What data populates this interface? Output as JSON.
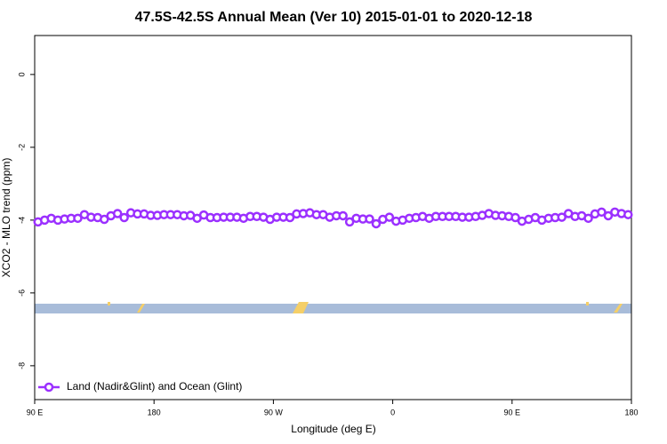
{
  "chart_data": {
    "type": "line",
    "title": "47.5S-42.5S Annual Mean (Ver 10)   2015-01-01 to 2020-12-18",
    "x_label": "Longitude (deg E)",
    "y_label": "XCO2 - MLO trend (ppm)",
    "xlim": [
      90,
      540
    ],
    "xticks": [
      {
        "value": 90,
        "label": "90 E"
      },
      180,
      {
        "value": 270,
        "label": "90 W"
      },
      {
        "value": 360,
        "label": "0"
      },
      {
        "value": 450,
        "label": "90 E"
      },
      {
        "value": 540,
        "label": "180"
      }
    ],
    "ylim": [
      -8.93,
      1.07
    ],
    "yticks": [
      0,
      -2,
      -4,
      -6,
      -8
    ],
    "legend": "bottomleft",
    "x": [
      92.5,
      97.5,
      102.5,
      107.5,
      112.5,
      117.5,
      122.5,
      127.5,
      132.5,
      137.5,
      142.5,
      147.5,
      152.5,
      157.5,
      162.5,
      167.5,
      172.5,
      177.5,
      182.5,
      187.5,
      192.5,
      197.5,
      202.5,
      207.5,
      212.5,
      217.5,
      222.5,
      227.5,
      232.5,
      237.5,
      242.5,
      247.5,
      252.5,
      257.5,
      262.5,
      267.5,
      272.5,
      277.5,
      282.5,
      287.5,
      292.5,
      297.5,
      302.5,
      307.5,
      312.5,
      317.5,
      322.5,
      327.5,
      332.5,
      337.5,
      342.5,
      347.5,
      352.5,
      357.5,
      362.5,
      367.5,
      372.5,
      377.5,
      382.5,
      387.5,
      392.5,
      397.5,
      402.5,
      407.5,
      412.5,
      417.5,
      422.5,
      427.5,
      432.5,
      437.5,
      442.5,
      447.5,
      452.5,
      457.5,
      462.5,
      467.5,
      472.5,
      477.5,
      482.5,
      487.5,
      492.5,
      497.5,
      502.5,
      507.5,
      512.5,
      517.5,
      522.5,
      527.5,
      532.5,
      537.5
    ],
    "series": [
      {
        "name": "Land (Nadir&Glint) and Ocean (Glint)",
        "color": "#9b30ff",
        "values": [
          -4.05,
          -4.0,
          -3.95,
          -4.0,
          -3.97,
          -3.95,
          -3.95,
          -3.85,
          -3.92,
          -3.93,
          -3.98,
          -3.88,
          -3.82,
          -3.93,
          -3.8,
          -3.83,
          -3.83,
          -3.87,
          -3.87,
          -3.85,
          -3.85,
          -3.85,
          -3.88,
          -3.87,
          -3.95,
          -3.86,
          -3.93,
          -3.93,
          -3.92,
          -3.92,
          -3.92,
          -3.95,
          -3.9,
          -3.9,
          -3.92,
          -3.98,
          -3.92,
          -3.92,
          -3.93,
          -3.83,
          -3.82,
          -3.8,
          -3.85,
          -3.85,
          -3.92,
          -3.88,
          -3.88,
          -4.05,
          -3.95,
          -3.97,
          -3.97,
          -4.1,
          -3.98,
          -3.92,
          -4.03,
          -4.0,
          -3.95,
          -3.93,
          -3.9,
          -3.95,
          -3.9,
          -3.9,
          -3.9,
          -3.9,
          -3.92,
          -3.92,
          -3.9,
          -3.87,
          -3.82,
          -3.87,
          -3.88,
          -3.9,
          -3.93,
          -4.03,
          -3.98,
          -3.93,
          -4.0,
          -3.95,
          -3.93,
          -3.92,
          -3.82,
          -3.9,
          -3.88,
          -3.95,
          -3.83,
          -3.78,
          -3.88,
          -3.78,
          -3.82,
          -3.85
        ]
      }
    ]
  }
}
